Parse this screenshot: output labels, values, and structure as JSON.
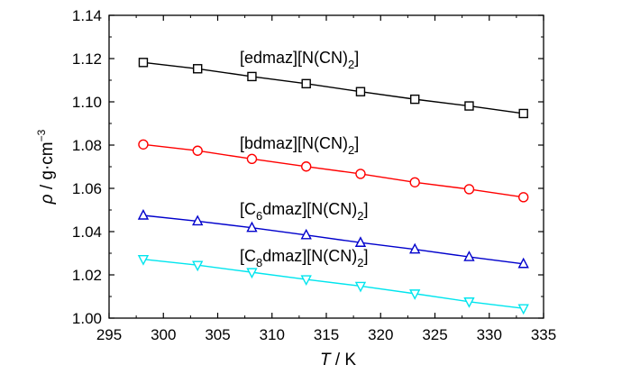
{
  "chart_data": {
    "type": "line",
    "xlabel": {
      "symbol": "T",
      "unit": " / K"
    },
    "ylabel": {
      "symbol": "ρ",
      "unit": " / g·cm",
      "sup": "−3"
    },
    "xlim": [
      295,
      335
    ],
    "ylim": [
      1.0,
      1.14
    ],
    "xticks": [
      "295",
      "300",
      "305",
      "310",
      "315",
      "320",
      "325",
      "330",
      "335"
    ],
    "yticks": [
      "1.00",
      "1.02",
      "1.04",
      "1.06",
      "1.08",
      "1.10",
      "1.12",
      "1.14"
    ],
    "x": [
      298.15,
      303.15,
      308.15,
      313.15,
      318.15,
      323.15,
      328.15,
      333.15
    ],
    "series": [
      {
        "name": "[edmaz][N(CN)2]",
        "label_parts": {
          "pre": "[edmaz][N(CN)",
          "sub": "2",
          "post": "]"
        },
        "color": "#000000",
        "marker": "square",
        "values": [
          1.1182,
          1.1153,
          1.1117,
          1.1084,
          1.1047,
          1.1012,
          1.0981,
          1.0946
        ]
      },
      {
        "name": "[bdmaz][N(CN)2]",
        "label_parts": {
          "pre": "[bdmaz][N(CN)",
          "sub": "2",
          "post": "]"
        },
        "color": "#ff0000",
        "marker": "circle",
        "values": [
          1.0803,
          1.0774,
          1.0736,
          1.0701,
          1.0667,
          1.0628,
          1.0596,
          1.0559
        ]
      },
      {
        "name": "[C6dmaz][N(CN)2]",
        "label_parts": {
          "pre": "[C",
          "sub1": "6",
          "mid": "dmaz][N(CN)",
          "sub": "2",
          "post": "]"
        },
        "color": "#0000cc",
        "marker": "triangle-up",
        "values": [
          1.0475,
          1.0448,
          1.0418,
          1.0384,
          1.0349,
          1.0318,
          1.0283,
          1.0251
        ]
      },
      {
        "name": "[C8dmaz][N(CN)2]",
        "label_parts": {
          "pre": "[C",
          "sub1": "8",
          "mid": "dmaz][N(CN)",
          "sub": "2",
          "post": "]"
        },
        "color": "#00e5ee",
        "marker": "triangle-down",
        "values": [
          1.0272,
          1.0245,
          1.0212,
          1.0179,
          1.0148,
          1.0113,
          1.0076,
          1.0045
        ]
      }
    ],
    "grid": false,
    "legend": "none"
  }
}
